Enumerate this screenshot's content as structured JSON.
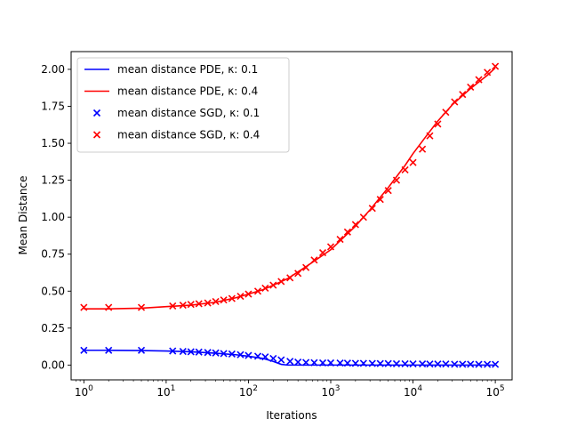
{
  "chart_data": {
    "type": "line",
    "xlabel": "Iterations",
    "ylabel": "Mean Distance",
    "xscale": "log",
    "xlim": [
      0.7,
      160000
    ],
    "ylim": [
      -0.1,
      2.12
    ],
    "x_ticks": [
      {
        "value": 1,
        "base": "10",
        "exp": "0"
      },
      {
        "value": 10,
        "base": "10",
        "exp": "1"
      },
      {
        "value": 100,
        "base": "10",
        "exp": "2"
      },
      {
        "value": 1000,
        "base": "10",
        "exp": "3"
      },
      {
        "value": 10000,
        "base": "10",
        "exp": "4"
      },
      {
        "value": 100000,
        "base": "10",
        "exp": "5"
      }
    ],
    "y_ticks": [
      "0.00",
      "0.25",
      "0.50",
      "0.75",
      "1.00",
      "1.25",
      "1.50",
      "1.75",
      "2.00"
    ],
    "legend_position": "upper-left",
    "colors": {
      "kappa_0_1": "#0000ff",
      "kappa_0_4": "#ff0000"
    },
    "series": [
      {
        "name": "mean distance PDE, κ: 0.1",
        "kind": "line",
        "color": "#0000ff",
        "x": [
          1,
          2,
          5,
          10,
          20,
          40,
          70,
          100,
          150,
          200,
          250,
          300,
          500,
          1000,
          10000,
          100000
        ],
        "y": [
          0.1,
          0.1,
          0.098,
          0.095,
          0.09,
          0.08,
          0.07,
          0.06,
          0.045,
          0.025,
          0.005,
          0.0,
          0.0,
          0.0,
          0.0,
          0.0
        ]
      },
      {
        "name": "mean distance PDE, κ: 0.4",
        "kind": "line",
        "color": "#ff0000",
        "x": [
          1,
          2,
          5,
          10,
          20,
          40,
          70,
          100,
          150,
          200,
          300,
          500,
          1000,
          2000,
          3000,
          5000,
          8000,
          10000,
          15000,
          20000,
          30000,
          50000,
          80000,
          100000
        ],
        "y": [
          0.38,
          0.38,
          0.385,
          0.395,
          0.405,
          0.425,
          0.455,
          0.48,
          0.51,
          0.54,
          0.585,
          0.665,
          0.78,
          0.94,
          1.05,
          1.2,
          1.35,
          1.43,
          1.56,
          1.65,
          1.76,
          1.87,
          1.96,
          2.01
        ]
      },
      {
        "name": "mean distance SGD, κ: 0.1",
        "kind": "scatter",
        "marker": "x",
        "color": "#0000ff",
        "x": [
          1,
          2,
          5,
          12,
          16,
          20,
          25,
          32,
          40,
          50,
          63,
          80,
          100,
          130,
          160,
          200,
          250,
          320,
          400,
          500,
          630,
          800,
          1000,
          1300,
          1600,
          2000,
          2500,
          3200,
          4000,
          5000,
          6300,
          8000,
          10000,
          13000,
          16000,
          20000,
          25000,
          32000,
          40000,
          50000,
          63000,
          80000,
          100000
        ],
        "y": [
          0.1,
          0.1,
          0.1,
          0.095,
          0.092,
          0.09,
          0.088,
          0.085,
          0.082,
          0.078,
          0.075,
          0.07,
          0.065,
          0.06,
          0.055,
          0.045,
          0.035,
          0.025,
          0.02,
          0.018,
          0.016,
          0.015,
          0.015,
          0.014,
          0.013,
          0.012,
          0.012,
          0.011,
          0.01,
          0.01,
          0.009,
          0.009,
          0.008,
          0.008,
          0.007,
          0.007,
          0.007,
          0.006,
          0.006,
          0.006,
          0.005,
          0.005,
          0.005
        ]
      },
      {
        "name": "mean distance SGD, κ: 0.4",
        "kind": "scatter",
        "marker": "x",
        "color": "#ff0000",
        "x": [
          1,
          2,
          5,
          12,
          16,
          20,
          25,
          32,
          40,
          50,
          63,
          80,
          100,
          130,
          160,
          200,
          250,
          320,
          400,
          500,
          630,
          800,
          1000,
          1300,
          1600,
          2000,
          2500,
          3200,
          4000,
          5000,
          6300,
          8000,
          10000,
          13000,
          16000,
          20000,
          25000,
          32000,
          40000,
          50000,
          63000,
          80000,
          100000
        ],
        "y": [
          0.39,
          0.39,
          0.39,
          0.4,
          0.405,
          0.41,
          0.415,
          0.42,
          0.43,
          0.44,
          0.45,
          0.465,
          0.48,
          0.5,
          0.52,
          0.54,
          0.565,
          0.59,
          0.62,
          0.66,
          0.71,
          0.76,
          0.8,
          0.85,
          0.9,
          0.95,
          1.0,
          1.06,
          1.12,
          1.18,
          1.25,
          1.32,
          1.37,
          1.46,
          1.55,
          1.63,
          1.71,
          1.78,
          1.83,
          1.88,
          1.93,
          1.98,
          2.02
        ]
      }
    ]
  }
}
